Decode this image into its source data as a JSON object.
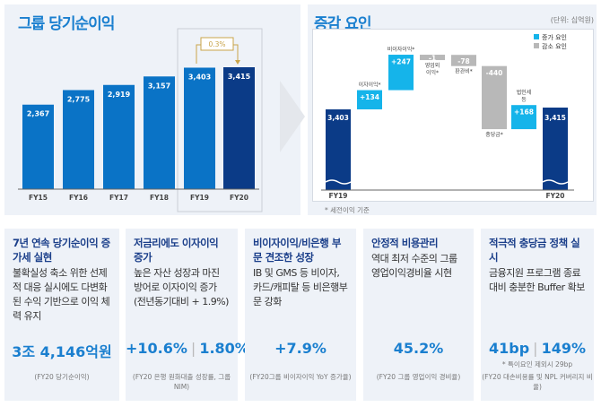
{
  "left": {
    "title": "그룹 당기순이익"
  },
  "right": {
    "title": "증감 요인",
    "unit": "(단위: 십억원)",
    "footnote": "* 세전이익 기준",
    "legend": {
      "increase": "증가 요인",
      "decrease": "감소 요인"
    }
  },
  "colors": {
    "bar": "#0a73c6",
    "bar_latest": "#0b3b87",
    "increase": "#15b4ea",
    "decrease": "#b8b8b8",
    "growth": "#c9a44a"
  },
  "chart_data": [
    {
      "type": "bar",
      "title": "그룹 당기순이익",
      "categories": [
        "FY15",
        "FY16",
        "FY17",
        "FY18",
        "FY19",
        "FY20"
      ],
      "values": [
        2367,
        2775,
        2919,
        3157,
        3403,
        3415
      ],
      "labels": [
        "2,367",
        "2,775",
        "2,919",
        "3,157",
        "3,403",
        "3,415"
      ],
      "annotation": "0.3%",
      "ylim": [
        0,
        3500
      ]
    },
    {
      "type": "waterfall",
      "title": "증감 요인",
      "start": {
        "label": "FY19",
        "value": 3403,
        "text": "3,403"
      },
      "end": {
        "label": "FY20",
        "value": 3415,
        "text": "3,415"
      },
      "steps": [
        {
          "name": "이자이익*",
          "value": 134,
          "text": "+134"
        },
        {
          "name": "비이자이익*",
          "value": 247,
          "text": "+247"
        },
        {
          "name": "영업외 이익*",
          "value": -1,
          "text": "-1"
        },
        {
          "name": "판관비*",
          "value": -78,
          "text": "-78"
        },
        {
          "name": "충당금*",
          "value": -440,
          "text": "-440"
        },
        {
          "name": "법인세 등",
          "value": 168,
          "text": "+168"
        }
      ]
    }
  ],
  "cards": [
    {
      "title": "7년 연속 당기순이익 증가세 실현",
      "body": "불확실성 축소 위한 선제적 대응 실시에도 다변화된 수익 기반으로 이익 체력 유지",
      "value": "3조 4,146억원",
      "value2": "",
      "note": "",
      "sub": "(FY20 당기순이익)"
    },
    {
      "title": "저금리에도 이자이익 증가",
      "body": "높은 자산 성장과 마진 방어로 이자이익 증가 (전년동기대비 + 1.9%)",
      "value": "+10.6%",
      "value2": "1.80%",
      "note": "",
      "sub": "(FY20 은행 원화대출 성장률, 그룹NIM)"
    },
    {
      "title": "비이자이익/비은행 부문 견조한 성장",
      "body": "IB 및 GMS 등 비이자, 카드/캐피탈 등 비은행부문 강화",
      "value": "+7.9%",
      "value2": "",
      "note": "",
      "sub": "(FY20그룹 비이자이익 YoY 증가율)"
    },
    {
      "title": "안정적 비용관리",
      "body": "역대 최저 수준의 그룹 영업이익경비율 시현",
      "value": "45.2%",
      "value2": "",
      "note": "",
      "sub": "(FY20 그룹 영업이익 경비율)"
    },
    {
      "title": "적극적 충당금 정책 실시",
      "body": "금융지원 프로그램 종료 대비 충분한 Buffer 확보",
      "value": "41bp",
      "value2": "149%",
      "note": "* 특이요인 제외시 29bp",
      "sub": "(FY20 대손비용률 및 NPL 커버리지 비율)"
    }
  ]
}
